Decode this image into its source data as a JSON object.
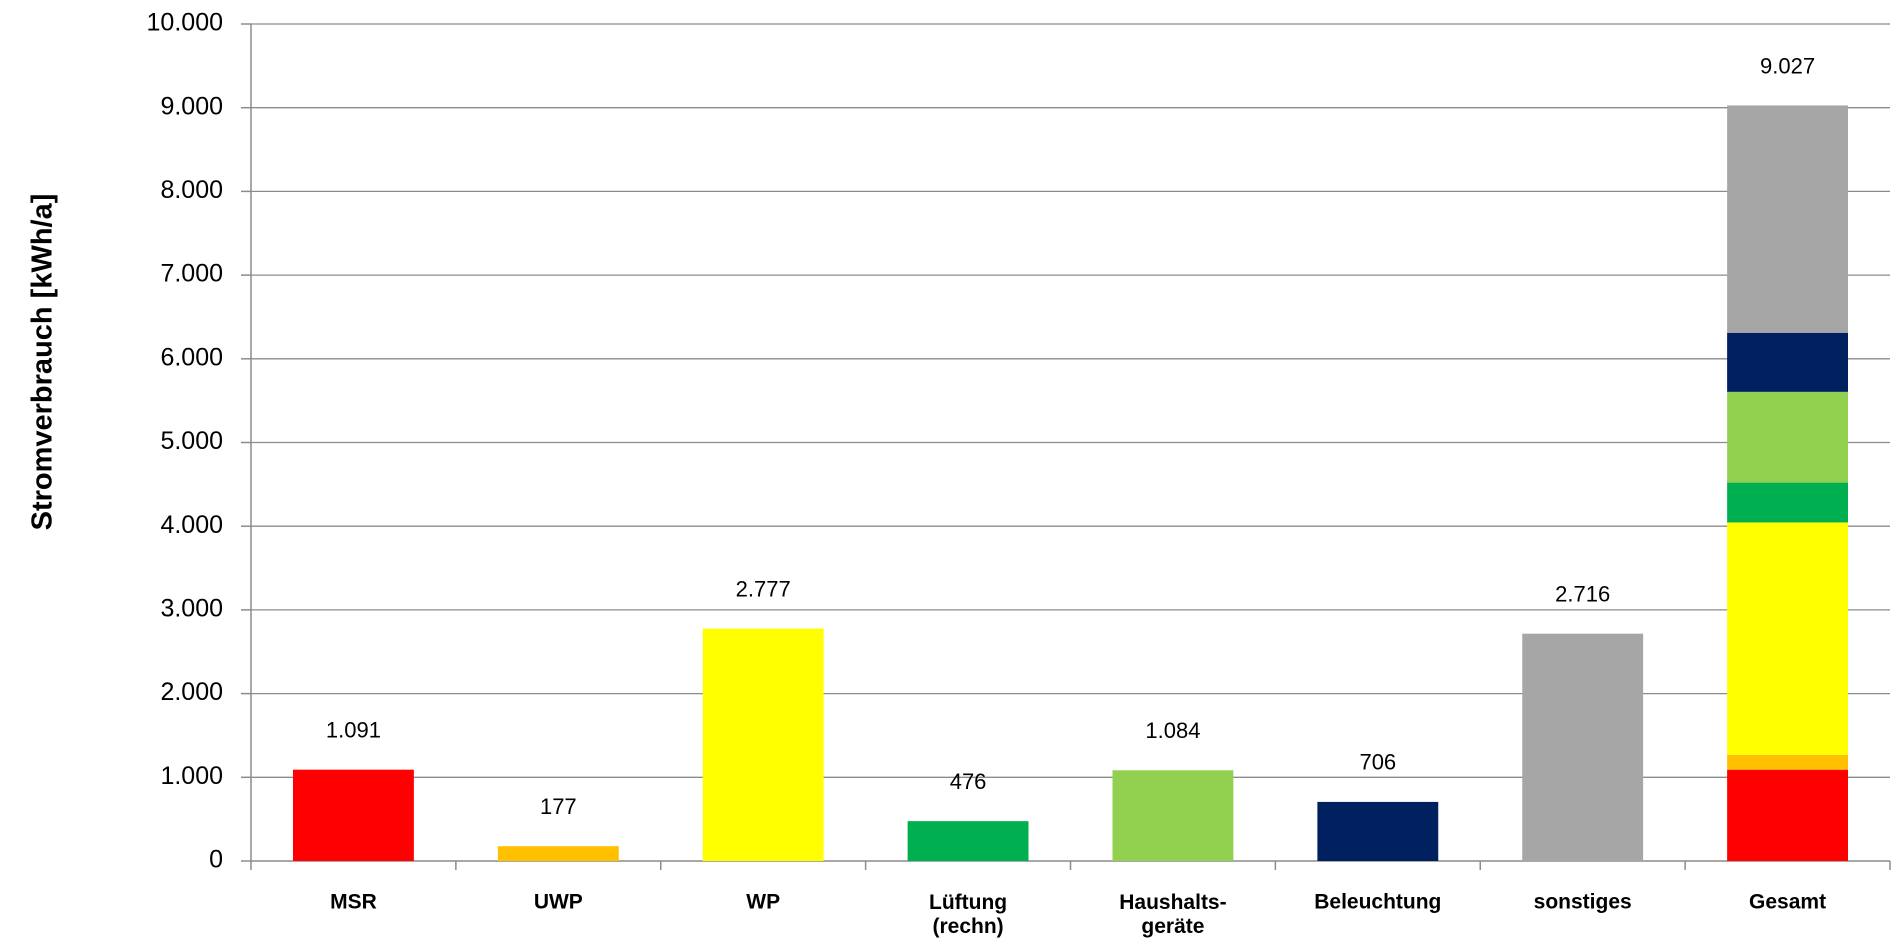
{
  "chart_data": {
    "type": "bar",
    "y_label": "Stromverbrauch [kWh/a]",
    "categories": [
      "MSR",
      "UWP",
      "WP",
      "Lüftung\n(rechn)",
      "Haushalts-\ngeräte",
      "Beleuchtung",
      "sonstiges",
      "Gesamt"
    ],
    "values": [
      1091,
      177,
      2777,
      476,
      1084,
      706,
      2716,
      9027
    ],
    "value_labels": [
      "1.091",
      "177",
      "2.777",
      "476",
      "1.084",
      "706",
      "2.716",
      "9.027"
    ],
    "colors": [
      "#ff0000",
      "#ffc000",
      "#ffff00",
      "#00b050",
      "#92d050",
      "#002060",
      "#a6a6a6"
    ],
    "last_bar_stacked": true,
    "ylim": [
      0,
      10000
    ],
    "yticks": [
      0,
      {
        "value": 1000,
        "label": "1.000"
      },
      {
        "value": 2000,
        "label": "2.000"
      },
      {
        "value": 3000,
        "label": "3.000"
      },
      {
        "value": 4000,
        "label": "4.000"
      },
      {
        "value": 5000,
        "label": "5.000"
      },
      {
        "value": 6000,
        "label": "6.000"
      },
      {
        "value": 7000,
        "label": "7.000"
      },
      {
        "value": 8000,
        "label": "8.000"
      },
      {
        "value": 9000,
        "label": "9.000"
      },
      {
        "value": 10000,
        "label": "10.000"
      }
    ],
    "grid": true
  }
}
